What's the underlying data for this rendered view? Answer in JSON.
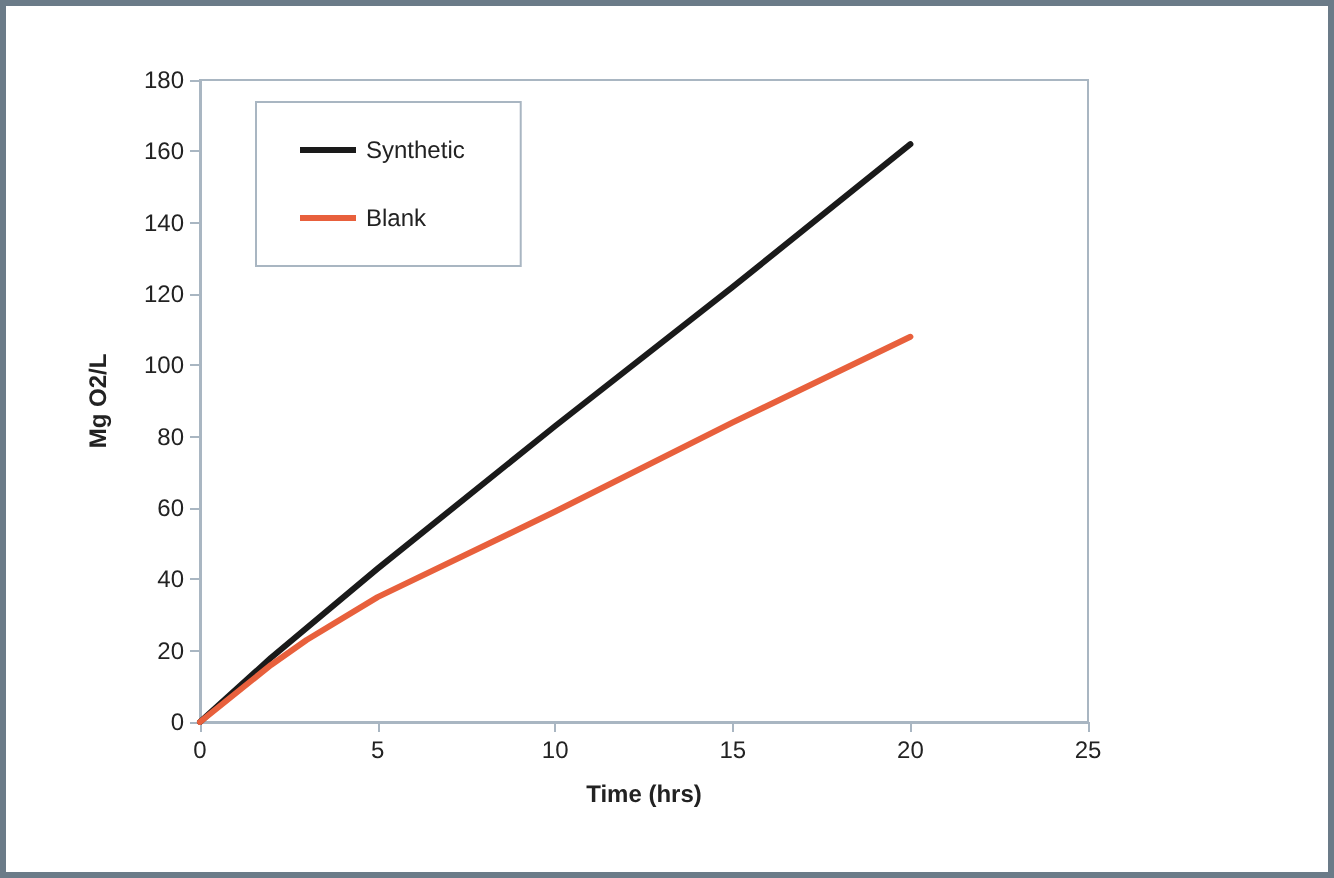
{
  "chart_data": {
    "type": "line",
    "xlabel": "Time (hrs)",
    "ylabel": "Mg O2/L",
    "series": [
      {
        "name": "Synthetic",
        "color": "#1a1a1a",
        "x": [
          0,
          2,
          5,
          10,
          15,
          20
        ],
        "values": [
          0,
          18,
          43,
          83,
          122,
          162
        ]
      },
      {
        "name": "Blank",
        "color": "#e8603c",
        "x": [
          0,
          2,
          3,
          5,
          10,
          15,
          20
        ],
        "values": [
          0,
          16,
          23,
          35,
          59,
          84,
          108
        ]
      }
    ],
    "xlim": [
      0,
      25
    ],
    "xticks": [
      0,
      5,
      10,
      15,
      20,
      25
    ],
    "ylim": [
      0,
      180
    ],
    "yticks": [
      0,
      20,
      40,
      60,
      80,
      100,
      120,
      140,
      160,
      180
    ],
    "grid": false,
    "legend": "top left",
    "marker": "none",
    "line_style": "solid"
  }
}
